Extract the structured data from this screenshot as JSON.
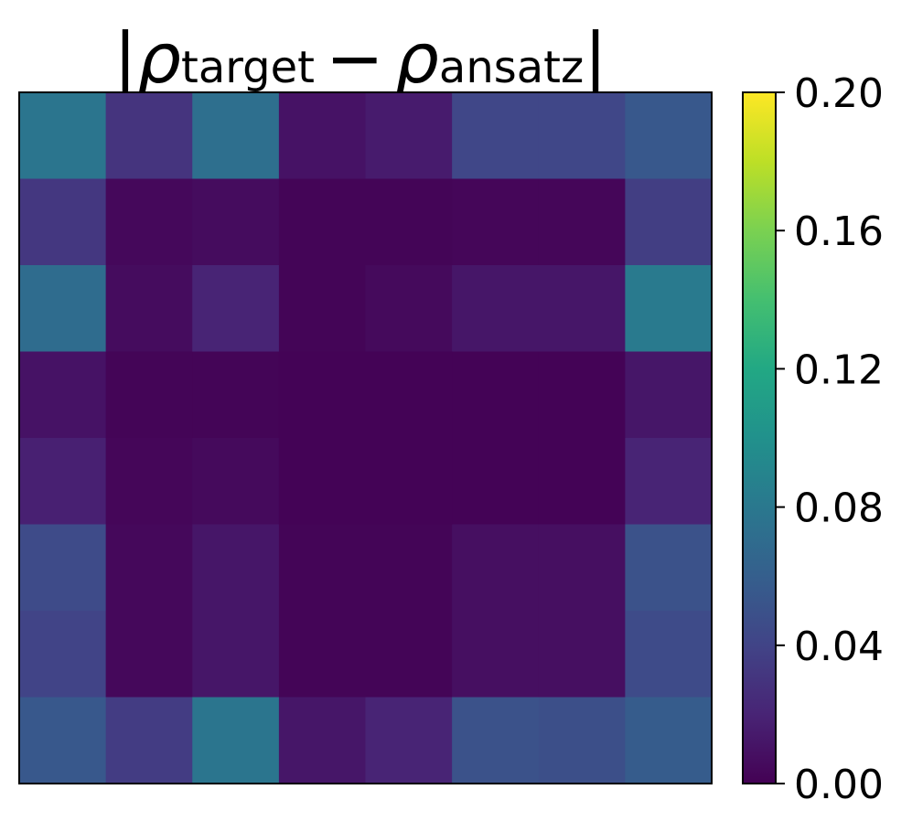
{
  "chart_data": {
    "type": "heatmap",
    "title": {
      "bar": "|",
      "rho": "ρ",
      "target_sub": "target",
      "minus": "−",
      "ansatz_sub": "ansatz"
    },
    "rows": 8,
    "cols": 8,
    "values": [
      [
        0.078,
        0.03,
        0.073,
        0.01,
        0.015,
        0.042,
        0.042,
        0.055
      ],
      [
        0.032,
        0.004,
        0.006,
        0.002,
        0.002,
        0.003,
        0.003,
        0.036
      ],
      [
        0.07,
        0.006,
        0.02,
        0.002,
        0.005,
        0.012,
        0.012,
        0.082
      ],
      [
        0.01,
        0.002,
        0.002,
        0.001,
        0.001,
        0.001,
        0.001,
        0.012
      ],
      [
        0.018,
        0.003,
        0.005,
        0.001,
        0.001,
        0.001,
        0.001,
        0.02
      ],
      [
        0.045,
        0.004,
        0.012,
        0.002,
        0.002,
        0.008,
        0.008,
        0.05
      ],
      [
        0.04,
        0.004,
        0.012,
        0.002,
        0.002,
        0.008,
        0.008,
        0.045
      ],
      [
        0.055,
        0.035,
        0.078,
        0.012,
        0.02,
        0.05,
        0.048,
        0.058
      ]
    ],
    "colormap": "viridis",
    "colorbar": {
      "min": 0.0,
      "max": 0.2,
      "ticks": [
        "0.00",
        "0.04",
        "0.08",
        "0.12",
        "0.16",
        "0.20"
      ]
    },
    "axis_ticks_visible": false,
    "grid": false
  }
}
